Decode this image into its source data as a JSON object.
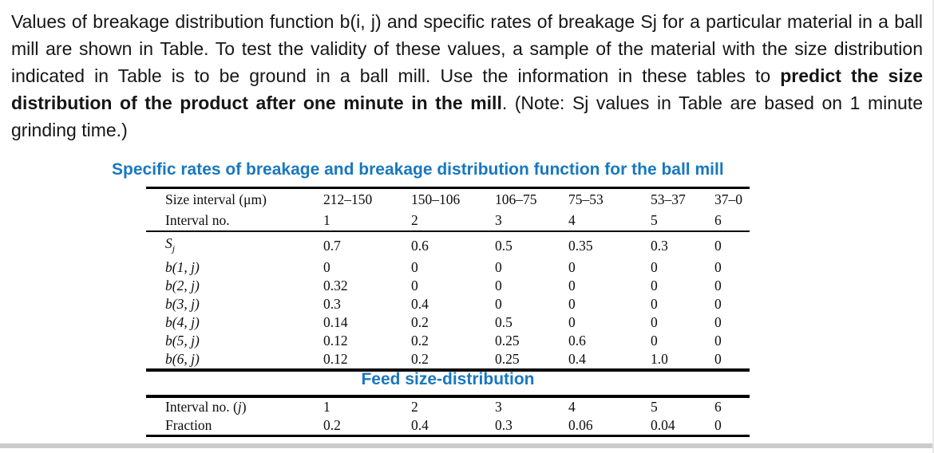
{
  "problem": {
    "text_before_bold": "Values of breakage distribution function b(i, j) and specific rates of breakage Sj for a particular material in a ball mill are shown in Table. To test the validity of these values, a sample of the material with the size distribution indicated in Table is to be ground in a ball mill. Use the information in these tables to ",
    "bold_text": "predict the size distribution of the product after one minute in the mill",
    "text_after_bold": ". (Note: Sj values in Table are based on 1 minute grinding time.)"
  },
  "breakage_table": {
    "title": "Specific rates of breakage and breakage distribution function for the ball mill",
    "header_rows": [
      {
        "label": [
          {
            "t": "Size interval (μm)",
            "i": false
          }
        ],
        "values": [
          "212–150",
          "150–106",
          "106–75",
          "75–53",
          "53–37",
          "37–0"
        ]
      },
      {
        "label": [
          {
            "t": "Interval no.",
            "i": false
          }
        ],
        "values": [
          "1",
          "2",
          "3",
          "4",
          "5",
          "6"
        ]
      }
    ],
    "body_rows": [
      {
        "label": [
          {
            "t": "S",
            "i": true
          },
          {
            "t": "j",
            "i": true,
            "sub": true
          }
        ],
        "values": [
          "0.7",
          "0.6",
          "0.5",
          "0.35",
          "0.3",
          "0"
        ]
      },
      {
        "label": [
          {
            "t": "b(1, j)",
            "i": true
          }
        ],
        "values": [
          "0",
          "0",
          "0",
          "0",
          "0",
          "0"
        ]
      },
      {
        "label": [
          {
            "t": "b(2, j)",
            "i": true
          }
        ],
        "values": [
          "0.32",
          "0",
          "0",
          "0",
          "0",
          "0"
        ]
      },
      {
        "label": [
          {
            "t": "b(3, j)",
            "i": true
          }
        ],
        "values": [
          "0.3",
          "0.4",
          "0",
          "0",
          "0",
          "0"
        ]
      },
      {
        "label": [
          {
            "t": "b(4, j)",
            "i": true
          }
        ],
        "values": [
          "0.14",
          "0.2",
          "0.5",
          "0",
          "0",
          "0"
        ]
      },
      {
        "label": [
          {
            "t": "b(5, j)",
            "i": true
          }
        ],
        "values": [
          "0.12",
          "0.2",
          "0.25",
          "0.6",
          "0",
          "0"
        ]
      },
      {
        "label": [
          {
            "t": "b(6, j)",
            "i": true
          }
        ],
        "values": [
          "0.12",
          "0.2",
          "0.25",
          "0.4",
          "1.0",
          "0"
        ]
      }
    ]
  },
  "feed_table": {
    "title": "Feed size-distribution",
    "body_rows": [
      {
        "label": [
          {
            "t": "Interval no. (",
            "i": false
          },
          {
            "t": "j",
            "i": true
          },
          {
            "t": ")",
            "i": false
          }
        ],
        "values": [
          "1",
          "2",
          "3",
          "4",
          "5",
          "6"
        ]
      },
      {
        "label": [
          {
            "t": "Fraction",
            "i": false
          }
        ],
        "values": [
          "0.2",
          "0.4",
          "0.3",
          "0.06",
          "0.04",
          "0"
        ]
      }
    ]
  },
  "colors": {
    "title_blue": "#1878c0",
    "text_black": "#161616",
    "bottom_band_gray": "#cccccc"
  }
}
